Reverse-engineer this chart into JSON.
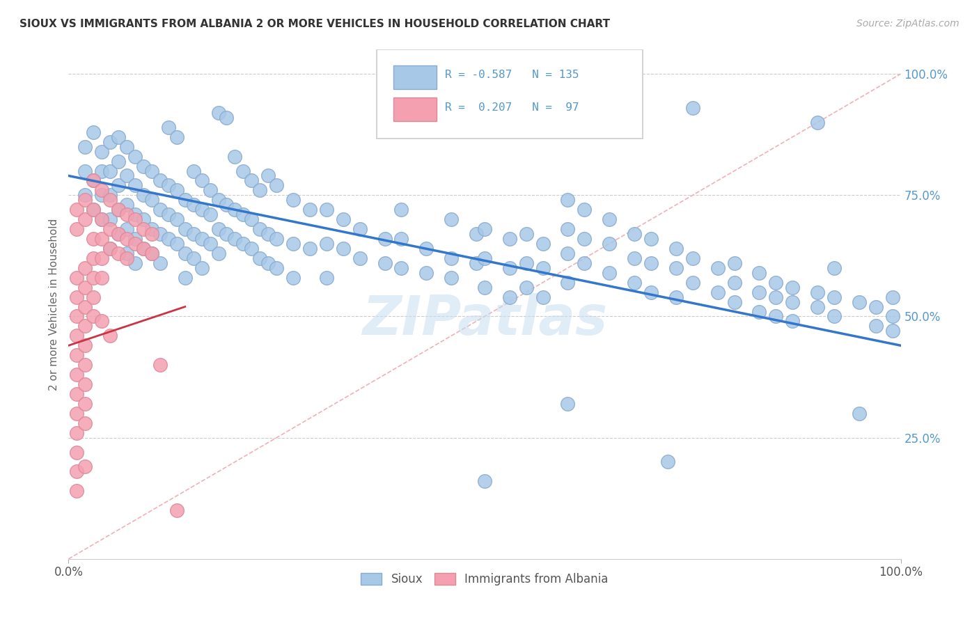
{
  "title": "SIOUX VS IMMIGRANTS FROM ALBANIA 2 OR MORE VEHICLES IN HOUSEHOLD CORRELATION CHART",
  "source_text": "Source: ZipAtlas.com",
  "ylabel": "2 or more Vehicles in Household",
  "watermark": "ZIPatlas",
  "sioux_color": "#a8c8e8",
  "sioux_edge": "#88aacc",
  "albania_color": "#f4a0b0",
  "albania_edge": "#dd8899",
  "line_color_sioux": "#3377cc",
  "line_color_albania": "#cc3344",
  "diag_color": "#f0b0b8",
  "ytick_color": "#5599cc",
  "sioux_line": [
    0.0,
    0.79,
    1.0,
    0.44
  ],
  "albania_line": [
    0.0,
    0.44,
    0.14,
    0.52
  ],
  "sioux_points": [
    [
      0.02,
      0.85
    ],
    [
      0.02,
      0.8
    ],
    [
      0.02,
      0.75
    ],
    [
      0.03,
      0.88
    ],
    [
      0.03,
      0.78
    ],
    [
      0.03,
      0.72
    ],
    [
      0.04,
      0.84
    ],
    [
      0.04,
      0.8
    ],
    [
      0.04,
      0.75
    ],
    [
      0.04,
      0.7
    ],
    [
      0.05,
      0.86
    ],
    [
      0.05,
      0.8
    ],
    [
      0.05,
      0.75
    ],
    [
      0.05,
      0.7
    ],
    [
      0.05,
      0.64
    ],
    [
      0.06,
      0.87
    ],
    [
      0.06,
      0.82
    ],
    [
      0.06,
      0.77
    ],
    [
      0.06,
      0.72
    ],
    [
      0.06,
      0.67
    ],
    [
      0.07,
      0.85
    ],
    [
      0.07,
      0.79
    ],
    [
      0.07,
      0.73
    ],
    [
      0.07,
      0.68
    ],
    [
      0.07,
      0.63
    ],
    [
      0.08,
      0.83
    ],
    [
      0.08,
      0.77
    ],
    [
      0.08,
      0.71
    ],
    [
      0.08,
      0.66
    ],
    [
      0.08,
      0.61
    ],
    [
      0.09,
      0.81
    ],
    [
      0.09,
      0.75
    ],
    [
      0.09,
      0.7
    ],
    [
      0.09,
      0.64
    ],
    [
      0.1,
      0.8
    ],
    [
      0.1,
      0.74
    ],
    [
      0.1,
      0.68
    ],
    [
      0.1,
      0.63
    ],
    [
      0.11,
      0.78
    ],
    [
      0.11,
      0.72
    ],
    [
      0.11,
      0.67
    ],
    [
      0.11,
      0.61
    ],
    [
      0.12,
      0.89
    ],
    [
      0.12,
      0.77
    ],
    [
      0.12,
      0.71
    ],
    [
      0.12,
      0.66
    ],
    [
      0.13,
      0.87
    ],
    [
      0.13,
      0.76
    ],
    [
      0.13,
      0.7
    ],
    [
      0.13,
      0.65
    ],
    [
      0.14,
      0.74
    ],
    [
      0.14,
      0.68
    ],
    [
      0.14,
      0.63
    ],
    [
      0.14,
      0.58
    ],
    [
      0.15,
      0.8
    ],
    [
      0.15,
      0.73
    ],
    [
      0.15,
      0.67
    ],
    [
      0.15,
      0.62
    ],
    [
      0.16,
      0.78
    ],
    [
      0.16,
      0.72
    ],
    [
      0.16,
      0.66
    ],
    [
      0.16,
      0.6
    ],
    [
      0.17,
      0.76
    ],
    [
      0.17,
      0.71
    ],
    [
      0.17,
      0.65
    ],
    [
      0.18,
      0.92
    ],
    [
      0.18,
      0.74
    ],
    [
      0.18,
      0.68
    ],
    [
      0.18,
      0.63
    ],
    [
      0.19,
      0.91
    ],
    [
      0.19,
      0.73
    ],
    [
      0.19,
      0.67
    ],
    [
      0.2,
      0.83
    ],
    [
      0.2,
      0.72
    ],
    [
      0.2,
      0.66
    ],
    [
      0.21,
      0.8
    ],
    [
      0.21,
      0.71
    ],
    [
      0.21,
      0.65
    ],
    [
      0.22,
      0.78
    ],
    [
      0.22,
      0.7
    ],
    [
      0.22,
      0.64
    ],
    [
      0.23,
      0.76
    ],
    [
      0.23,
      0.68
    ],
    [
      0.23,
      0.62
    ],
    [
      0.24,
      0.79
    ],
    [
      0.24,
      0.67
    ],
    [
      0.24,
      0.61
    ],
    [
      0.25,
      0.77
    ],
    [
      0.25,
      0.66
    ],
    [
      0.25,
      0.6
    ],
    [
      0.27,
      0.74
    ],
    [
      0.27,
      0.65
    ],
    [
      0.27,
      0.58
    ],
    [
      0.29,
      0.72
    ],
    [
      0.29,
      0.64
    ],
    [
      0.31,
      0.72
    ],
    [
      0.31,
      0.65
    ],
    [
      0.31,
      0.58
    ],
    [
      0.33,
      0.7
    ],
    [
      0.33,
      0.64
    ],
    [
      0.35,
      0.68
    ],
    [
      0.35,
      0.62
    ],
    [
      0.38,
      0.66
    ],
    [
      0.38,
      0.61
    ],
    [
      0.4,
      0.72
    ],
    [
      0.4,
      0.66
    ],
    [
      0.4,
      0.6
    ],
    [
      0.43,
      0.64
    ],
    [
      0.43,
      0.59
    ],
    [
      0.46,
      0.7
    ],
    [
      0.46,
      0.62
    ],
    [
      0.46,
      0.58
    ],
    [
      0.49,
      0.67
    ],
    [
      0.49,
      0.61
    ],
    [
      0.5,
      0.68
    ],
    [
      0.5,
      0.62
    ],
    [
      0.5,
      0.56
    ],
    [
      0.5,
      0.16
    ],
    [
      0.53,
      0.66
    ],
    [
      0.53,
      0.6
    ],
    [
      0.53,
      0.54
    ],
    [
      0.55,
      0.67
    ],
    [
      0.55,
      0.61
    ],
    [
      0.55,
      0.56
    ],
    [
      0.57,
      0.65
    ],
    [
      0.57,
      0.6
    ],
    [
      0.57,
      0.54
    ],
    [
      0.6,
      0.74
    ],
    [
      0.6,
      0.68
    ],
    [
      0.6,
      0.63
    ],
    [
      0.6,
      0.57
    ],
    [
      0.6,
      0.32
    ],
    [
      0.62,
      0.72
    ],
    [
      0.62,
      0.66
    ],
    [
      0.62,
      0.61
    ],
    [
      0.65,
      0.7
    ],
    [
      0.65,
      0.65
    ],
    [
      0.65,
      0.59
    ],
    [
      0.68,
      0.67
    ],
    [
      0.68,
      0.62
    ],
    [
      0.68,
      0.57
    ],
    [
      0.7,
      0.66
    ],
    [
      0.7,
      0.61
    ],
    [
      0.7,
      0.55
    ],
    [
      0.72,
      0.2
    ],
    [
      0.73,
      0.64
    ],
    [
      0.73,
      0.6
    ],
    [
      0.73,
      0.54
    ],
    [
      0.75,
      0.93
    ],
    [
      0.75,
      0.62
    ],
    [
      0.75,
      0.57
    ],
    [
      0.78,
      0.6
    ],
    [
      0.78,
      0.55
    ],
    [
      0.8,
      0.61
    ],
    [
      0.8,
      0.57
    ],
    [
      0.8,
      0.53
    ],
    [
      0.83,
      0.59
    ],
    [
      0.83,
      0.55
    ],
    [
      0.83,
      0.51
    ],
    [
      0.85,
      0.57
    ],
    [
      0.85,
      0.54
    ],
    [
      0.85,
      0.5
    ],
    [
      0.87,
      0.56
    ],
    [
      0.87,
      0.53
    ],
    [
      0.87,
      0.49
    ],
    [
      0.9,
      0.9
    ],
    [
      0.9,
      0.55
    ],
    [
      0.9,
      0.52
    ],
    [
      0.92,
      0.6
    ],
    [
      0.92,
      0.54
    ],
    [
      0.92,
      0.5
    ],
    [
      0.95,
      0.53
    ],
    [
      0.95,
      0.3
    ],
    [
      0.97,
      0.52
    ],
    [
      0.97,
      0.48
    ],
    [
      0.99,
      0.54
    ],
    [
      0.99,
      0.5
    ],
    [
      0.99,
      0.47
    ]
  ],
  "albania_points": [
    [
      0.01,
      0.72
    ],
    [
      0.01,
      0.68
    ],
    [
      0.01,
      0.58
    ],
    [
      0.01,
      0.54
    ],
    [
      0.01,
      0.5
    ],
    [
      0.01,
      0.46
    ],
    [
      0.01,
      0.42
    ],
    [
      0.01,
      0.38
    ],
    [
      0.01,
      0.34
    ],
    [
      0.01,
      0.3
    ],
    [
      0.01,
      0.26
    ],
    [
      0.01,
      0.22
    ],
    [
      0.01,
      0.18
    ],
    [
      0.01,
      0.14
    ],
    [
      0.02,
      0.74
    ],
    [
      0.02,
      0.7
    ],
    [
      0.02,
      0.6
    ],
    [
      0.02,
      0.56
    ],
    [
      0.02,
      0.52
    ],
    [
      0.02,
      0.48
    ],
    [
      0.02,
      0.44
    ],
    [
      0.02,
      0.4
    ],
    [
      0.02,
      0.36
    ],
    [
      0.02,
      0.32
    ],
    [
      0.02,
      0.28
    ],
    [
      0.02,
      0.19
    ],
    [
      0.03,
      0.78
    ],
    [
      0.03,
      0.72
    ],
    [
      0.03,
      0.66
    ],
    [
      0.03,
      0.62
    ],
    [
      0.03,
      0.58
    ],
    [
      0.03,
      0.54
    ],
    [
      0.03,
      0.5
    ],
    [
      0.04,
      0.76
    ],
    [
      0.04,
      0.7
    ],
    [
      0.04,
      0.66
    ],
    [
      0.04,
      0.62
    ],
    [
      0.04,
      0.58
    ],
    [
      0.04,
      0.49
    ],
    [
      0.05,
      0.74
    ],
    [
      0.05,
      0.68
    ],
    [
      0.05,
      0.64
    ],
    [
      0.05,
      0.46
    ],
    [
      0.06,
      0.72
    ],
    [
      0.06,
      0.67
    ],
    [
      0.06,
      0.63
    ],
    [
      0.07,
      0.71
    ],
    [
      0.07,
      0.66
    ],
    [
      0.07,
      0.62
    ],
    [
      0.08,
      0.7
    ],
    [
      0.08,
      0.65
    ],
    [
      0.09,
      0.68
    ],
    [
      0.09,
      0.64
    ],
    [
      0.1,
      0.67
    ],
    [
      0.1,
      0.63
    ],
    [
      0.11,
      0.4
    ],
    [
      0.13,
      0.1
    ]
  ]
}
